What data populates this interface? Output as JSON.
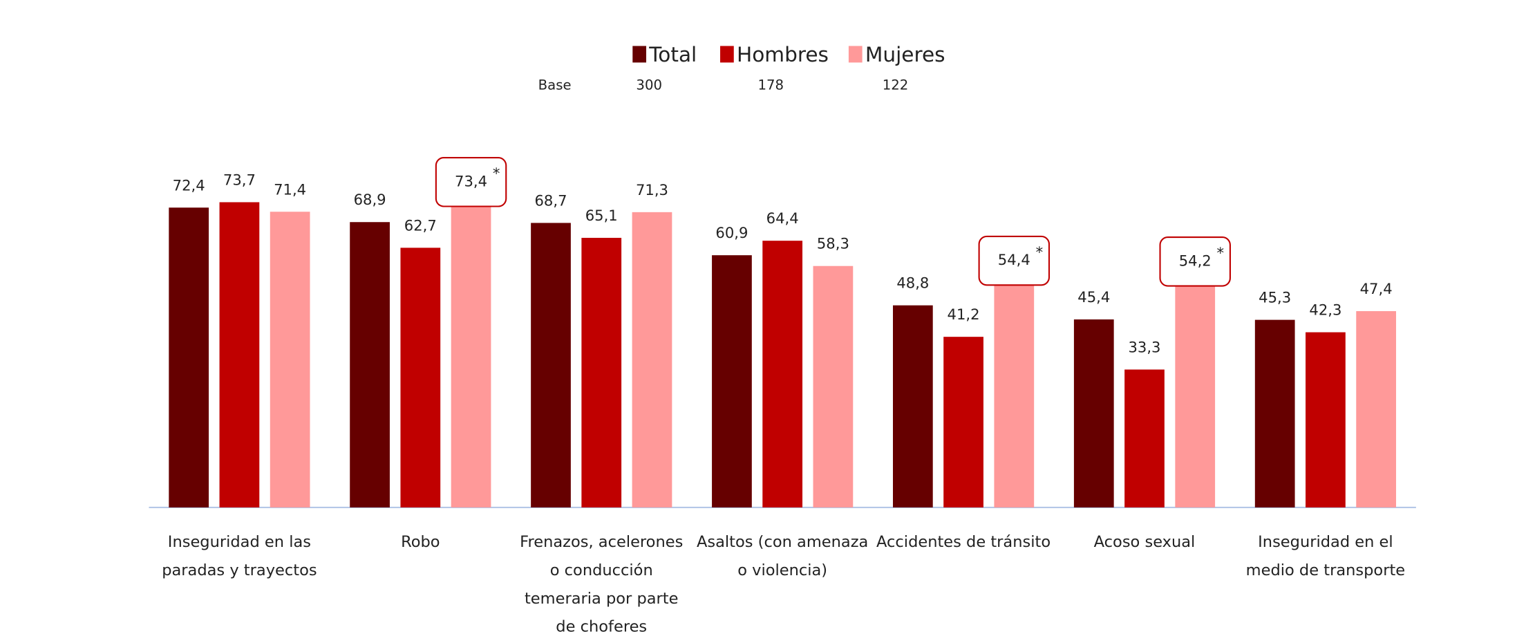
{
  "chart_data": {
    "type": "bar",
    "categories": [
      [
        "Inseguridad en las",
        "paradas  y trayectos"
      ],
      [
        "Robo"
      ],
      [
        "Frenazos, acelerones",
        "o conducción",
        "temeraria por parte",
        "de choferes"
      ],
      [
        "Asaltos (con amenaza",
        "o violencia)"
      ],
      [
        "Accidentes de tránsito"
      ],
      [
        "Acoso sexual"
      ],
      [
        "Inseguridad en el",
        "medio de transporte"
      ]
    ],
    "series": [
      {
        "name": "Total",
        "color": "#660000",
        "values": [
          72.4,
          68.9,
          68.7,
          60.9,
          48.8,
          45.4,
          45.3
        ],
        "value_labels": [
          "72,4",
          "68,9",
          "68,7",
          "60,9",
          "48,8",
          "45,4",
          "45,3"
        ]
      },
      {
        "name": "Hombres",
        "color": "#c00000",
        "values": [
          73.7,
          62.7,
          65.1,
          64.4,
          41.2,
          33.3,
          42.3
        ],
        "value_labels": [
          "73,7",
          "62,7",
          "65,1",
          "64,4",
          "41,2",
          "33,3",
          "42,3"
        ]
      },
      {
        "name": "Mujeres",
        "color": "#ff9999",
        "values": [
          71.4,
          73.4,
          71.3,
          58.3,
          54.4,
          54.2,
          47.4
        ],
        "value_labels": [
          "71,4",
          "73,4",
          "71,3",
          "58,3",
          "54,4",
          "54,2",
          "47,4"
        ],
        "annotations": [
          null,
          "*",
          null,
          null,
          "*",
          "*",
          null
        ]
      }
    ],
    "base": {
      "label": "Base",
      "values": [
        300,
        178,
        122
      ]
    },
    "ylim": [
      0,
      100
    ]
  }
}
